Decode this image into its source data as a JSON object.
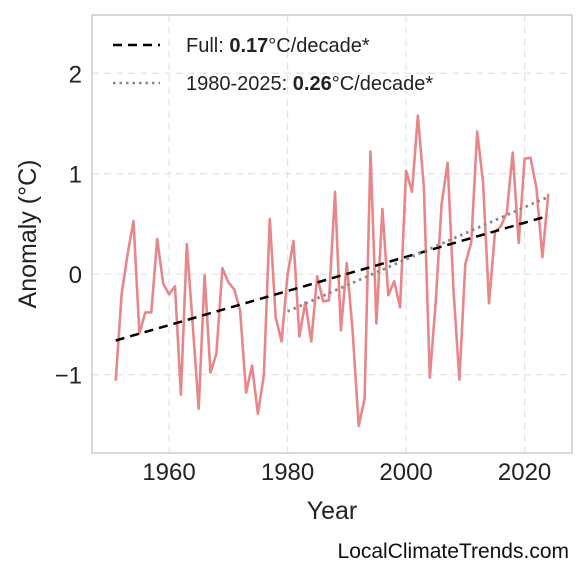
{
  "chart_data": {
    "type": "line",
    "title": "",
    "xlabel": "Year",
    "ylabel": "Anomaly (°C)",
    "xlim": [
      1947,
      2028
    ],
    "ylim": [
      -1.78,
      2.58
    ],
    "xticks": [
      1960,
      1980,
      2000,
      2020
    ],
    "yticks": [
      -1,
      0,
      1,
      2
    ],
    "ytick_labels": [
      "−1",
      "0",
      "1",
      "2"
    ],
    "grid": true,
    "legend_position": "top-left",
    "series": [
      {
        "kind": "anomaly",
        "color": "#e8878a",
        "x": [
          1951,
          1952,
          1953,
          1954,
          1955,
          1956,
          1957,
          1958,
          1959,
          1960,
          1961,
          1962,
          1963,
          1964,
          1965,
          1966,
          1967,
          1968,
          1969,
          1970,
          1971,
          1972,
          1973,
          1974,
          1975,
          1976,
          1977,
          1978,
          1979,
          1980,
          1981,
          1982,
          1983,
          1984,
          1985,
          1986,
          1987,
          1988,
          1989,
          1990,
          1991,
          1992,
          1993,
          1994,
          1995,
          1996,
          1997,
          1998,
          1999,
          2000,
          2001,
          2002,
          2003,
          2004,
          2005,
          2006,
          2007,
          2008,
          2009,
          2010,
          2011,
          2012,
          2013,
          2014,
          2015,
          2016,
          2017,
          2018,
          2019,
          2020,
          2021,
          2022,
          2023,
          2024
        ],
        "values": [
          -1.06,
          -0.2,
          0.2,
          0.53,
          -0.59,
          -0.38,
          -0.38,
          0.35,
          -0.09,
          -0.2,
          -0.12,
          -1.2,
          0.3,
          -0.5,
          -1.34,
          -0.01,
          -0.98,
          -0.79,
          0.06,
          -0.08,
          -0.15,
          -0.36,
          -1.18,
          -0.91,
          -1.39,
          -1.0,
          0.55,
          -0.43,
          -0.67,
          0.0,
          0.33,
          -0.62,
          -0.28,
          -0.67,
          -0.02,
          -0.27,
          -0.26,
          0.82,
          -0.56,
          0.11,
          -0.58,
          -1.51,
          -1.24,
          1.22,
          -0.49,
          0.65,
          -0.21,
          -0.07,
          -0.33,
          1.03,
          0.82,
          1.58,
          0.86,
          -1.03,
          -0.28,
          0.7,
          1.11,
          -0.16,
          -1.05,
          0.1,
          0.32,
          1.42,
          0.91,
          -0.29,
          0.42,
          0.48,
          0.61,
          1.21,
          0.31,
          1.15,
          1.16,
          0.86,
          0.17,
          0.8
        ]
      },
      {
        "kind": "trend",
        "legend_prefix": "Full: ",
        "legend_value": "0.17",
        "legend_suffix": "°C/decade*",
        "color": "#000000",
        "style": "dashed",
        "x": [
          1951,
          2024
        ],
        "values": [
          -0.66,
          0.58
        ]
      },
      {
        "kind": "trend",
        "legend_prefix": "1980-2025: ",
        "legend_value": "0.26",
        "legend_suffix": "°C/decade*",
        "color": "#888888",
        "style": "dotted",
        "x": [
          1980,
          2024
        ],
        "values": [
          -0.37,
          0.77
        ]
      }
    ]
  },
  "credit": "LocalClimateTrends.com"
}
